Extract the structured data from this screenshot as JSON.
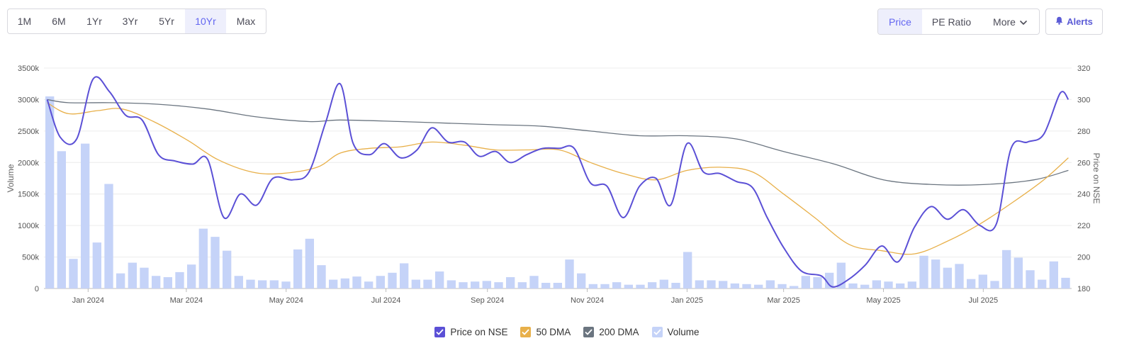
{
  "range_buttons": [
    "1M",
    "6M",
    "1Yr",
    "3Yr",
    "5Yr",
    "10Yr",
    "Max"
  ],
  "active_range": "10Yr",
  "view_buttons": {
    "price": "Price",
    "pe": "PE Ratio",
    "more": "More",
    "active": "Price"
  },
  "alerts_label": "Alerts",
  "legend": [
    {
      "label": "Price on NSE",
      "color": "#5b50d6"
    },
    {
      "label": "50 DMA",
      "color": "#e8b04a"
    },
    {
      "label": "200 DMA",
      "color": "#6b7580"
    },
    {
      "label": "Volume",
      "color": "#c5d3f8"
    }
  ],
  "icons": {
    "more": "chevron-down-icon",
    "alerts": "bell-icon",
    "legend": "checkmark-icon"
  },
  "chart_data": {
    "type": "line",
    "x_axis": {
      "ticks": [
        "Jan 2024",
        "Mar 2024",
        "May 2024",
        "Jul 2024",
        "Sep 2024",
        "Nov 2024",
        "Jan 2025",
        "Mar 2025",
        "May 2025",
        "Jul 2025"
      ]
    },
    "y_left": {
      "label": "Volume",
      "ylim": [
        0,
        3500000
      ],
      "ticks": [
        "0",
        "500k",
        "1000k",
        "1500k",
        "2000k",
        "2500k",
        "3000k",
        "3500k"
      ]
    },
    "y_right": {
      "label": "Price on NSE",
      "ylim": [
        180,
        320
      ],
      "ticks": [
        "180",
        "200",
        "220",
        "240",
        "260",
        "280",
        "300",
        "320"
      ]
    },
    "grid": true,
    "legend_position": "bottom",
    "series": [
      {
        "name": "Price on NSE",
        "axis": "right",
        "color": "#5b50d6",
        "points": [
          [
            "2023-12-07",
            300
          ],
          [
            "2023-12-15",
            276
          ],
          [
            "2023-12-25",
            275
          ],
          [
            "2024-01-04",
            313
          ],
          [
            "2024-01-14",
            305
          ],
          [
            "2024-01-24",
            290
          ],
          [
            "2024-02-03",
            287
          ],
          [
            "2024-02-13",
            265
          ],
          [
            "2024-02-23",
            261
          ],
          [
            "2024-03-05",
            259
          ],
          [
            "2024-03-14",
            262
          ],
          [
            "2024-03-24",
            225
          ],
          [
            "2024-04-03",
            240
          ],
          [
            "2024-04-13",
            233
          ],
          [
            "2024-04-23",
            250
          ],
          [
            "2024-05-05",
            249
          ],
          [
            "2024-05-15",
            254
          ],
          [
            "2024-05-25",
            285
          ],
          [
            "2024-06-03",
            310
          ],
          [
            "2024-06-11",
            272
          ],
          [
            "2024-06-21",
            265
          ],
          [
            "2024-06-30",
            272
          ],
          [
            "2024-07-10",
            263
          ],
          [
            "2024-07-20",
            268
          ],
          [
            "2024-07-29",
            282
          ],
          [
            "2024-08-08",
            273
          ],
          [
            "2024-08-18",
            273
          ],
          [
            "2024-08-27",
            264
          ],
          [
            "2024-09-06",
            267
          ],
          [
            "2024-09-15",
            260
          ],
          [
            "2024-09-25",
            265
          ],
          [
            "2024-10-05",
            269
          ],
          [
            "2024-10-15",
            269
          ],
          [
            "2024-10-24",
            269
          ],
          [
            "2024-11-03",
            247
          ],
          [
            "2024-11-13",
            245
          ],
          [
            "2024-11-23",
            225
          ],
          [
            "2024-12-03",
            245
          ],
          [
            "2024-12-13",
            250
          ],
          [
            "2024-12-22",
            233
          ],
          [
            "2025-01-01",
            272
          ],
          [
            "2025-01-11",
            254
          ],
          [
            "2025-01-21",
            253
          ],
          [
            "2025-01-31",
            248
          ],
          [
            "2025-02-10",
            244
          ],
          [
            "2025-02-19",
            225
          ],
          [
            "2025-03-01",
            206
          ],
          [
            "2025-03-12",
            191
          ],
          [
            "2025-03-24",
            188
          ],
          [
            "2025-03-31",
            181
          ],
          [
            "2025-04-10",
            186
          ],
          [
            "2025-04-20",
            195
          ],
          [
            "2025-04-30",
            207
          ],
          [
            "2025-05-10",
            197
          ],
          [
            "2025-05-20",
            219
          ],
          [
            "2025-05-30",
            232
          ],
          [
            "2025-06-09",
            224
          ],
          [
            "2025-06-19",
            230
          ],
          [
            "2025-06-29",
            220
          ],
          [
            "2025-07-09",
            221
          ],
          [
            "2025-07-18",
            269
          ],
          [
            "2025-07-28",
            273
          ],
          [
            "2025-08-07",
            278
          ],
          [
            "2025-08-17",
            304
          ],
          [
            "2025-08-22",
            300
          ]
        ]
      },
      {
        "name": "50 DMA",
        "axis": "right",
        "color": "#e8b04a",
        "points": [
          [
            "2023-12-07",
            298
          ],
          [
            "2023-12-20",
            291
          ],
          [
            "2024-01-07",
            293
          ],
          [
            "2024-01-22",
            294
          ],
          [
            "2024-02-10",
            286
          ],
          [
            "2024-03-02",
            274
          ],
          [
            "2024-03-20",
            262
          ],
          [
            "2024-04-10",
            254
          ],
          [
            "2024-04-28",
            253
          ],
          [
            "2024-05-20",
            257
          ],
          [
            "2024-06-03",
            266
          ],
          [
            "2024-06-21",
            269
          ],
          [
            "2024-07-10",
            270
          ],
          [
            "2024-07-29",
            273
          ],
          [
            "2024-08-18",
            271
          ],
          [
            "2024-09-06",
            268
          ],
          [
            "2024-09-25",
            268
          ],
          [
            "2024-10-15",
            268
          ],
          [
            "2024-11-03",
            260
          ],
          [
            "2024-11-23",
            253
          ],
          [
            "2024-12-13",
            249
          ],
          [
            "2025-01-01",
            255
          ],
          [
            "2025-01-21",
            257
          ],
          [
            "2025-02-10",
            254
          ],
          [
            "2025-03-01",
            240
          ],
          [
            "2025-03-20",
            225
          ],
          [
            "2025-04-10",
            208
          ],
          [
            "2025-04-30",
            204
          ],
          [
            "2025-05-20",
            202
          ],
          [
            "2025-06-09",
            210
          ],
          [
            "2025-06-29",
            221
          ],
          [
            "2025-07-18",
            234
          ],
          [
            "2025-08-07",
            249
          ],
          [
            "2025-08-22",
            263
          ]
        ]
      },
      {
        "name": "200 DMA",
        "axis": "right",
        "color": "#6b7580",
        "points": [
          [
            "2023-12-07",
            300
          ],
          [
            "2023-12-20",
            298
          ],
          [
            "2024-01-14",
            298
          ],
          [
            "2024-02-13",
            297
          ],
          [
            "2024-03-14",
            294
          ],
          [
            "2024-04-13",
            289
          ],
          [
            "2024-05-15",
            286
          ],
          [
            "2024-06-03",
            287
          ],
          [
            "2024-07-10",
            286
          ],
          [
            "2024-08-08",
            285
          ],
          [
            "2024-09-06",
            284
          ],
          [
            "2024-10-05",
            283
          ],
          [
            "2024-11-03",
            280
          ],
          [
            "2024-12-03",
            277
          ],
          [
            "2025-01-01",
            277
          ],
          [
            "2025-01-31",
            275
          ],
          [
            "2025-03-01",
            267
          ],
          [
            "2025-04-01",
            259
          ],
          [
            "2025-05-01",
            249
          ],
          [
            "2025-06-01",
            246
          ],
          [
            "2025-07-01",
            246
          ],
          [
            "2025-08-01",
            249
          ],
          [
            "2025-08-22",
            255
          ]
        ]
      },
      {
        "name": "Volume",
        "axis": "left",
        "type": "bar",
        "color": "#c5d3f8",
        "values": [
          3050000,
          2180000,
          470000,
          2300000,
          730000,
          1660000,
          240000,
          410000,
          330000,
          200000,
          180000,
          260000,
          380000,
          950000,
          820000,
          600000,
          200000,
          140000,
          130000,
          130000,
          110000,
          620000,
          790000,
          370000,
          140000,
          160000,
          190000,
          110000,
          200000,
          250000,
          400000,
          140000,
          140000,
          270000,
          130000,
          100000,
          110000,
          120000,
          100000,
          180000,
          100000,
          200000,
          90000,
          90000,
          460000,
          240000,
          70000,
          70000,
          100000,
          60000,
          60000,
          100000,
          140000,
          90000,
          580000,
          130000,
          130000,
          120000,
          80000,
          70000,
          60000,
          130000,
          70000,
          40000,
          200000,
          180000,
          250000,
          410000,
          80000,
          60000,
          130000,
          110000,
          80000,
          110000,
          520000,
          460000,
          330000,
          390000,
          150000,
          220000,
          120000,
          610000,
          490000,
          290000,
          140000,
          430000,
          170000
        ]
      }
    ]
  }
}
